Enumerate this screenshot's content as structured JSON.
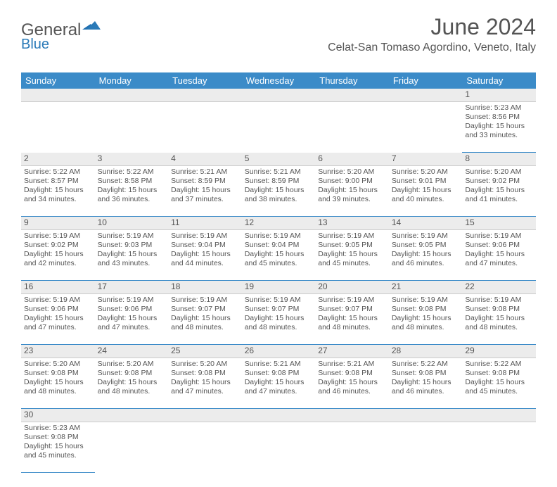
{
  "logo": {
    "part1": "General",
    "part2": "Blue"
  },
  "title": "June 2024",
  "location": "Celat-San Tomaso Agordino, Veneto, Italy",
  "colors": {
    "header_bg": "#3b8bc8",
    "header_text": "#ffffff",
    "text": "#555555",
    "rule": "#3b8bc8",
    "shade": "#ececec"
  },
  "weekdays": [
    "Sunday",
    "Monday",
    "Tuesday",
    "Wednesday",
    "Thursday",
    "Friday",
    "Saturday"
  ],
  "weeks": [
    [
      null,
      null,
      null,
      null,
      null,
      null,
      {
        "n": "1",
        "sr": "5:23 AM",
        "ss": "8:56 PM",
        "dl": "15 hours and 33 minutes."
      }
    ],
    [
      {
        "n": "2",
        "sr": "5:22 AM",
        "ss": "8:57 PM",
        "dl": "15 hours and 34 minutes."
      },
      {
        "n": "3",
        "sr": "5:22 AM",
        "ss": "8:58 PM",
        "dl": "15 hours and 36 minutes."
      },
      {
        "n": "4",
        "sr": "5:21 AM",
        "ss": "8:59 PM",
        "dl": "15 hours and 37 minutes."
      },
      {
        "n": "5",
        "sr": "5:21 AM",
        "ss": "8:59 PM",
        "dl": "15 hours and 38 minutes."
      },
      {
        "n": "6",
        "sr": "5:20 AM",
        "ss": "9:00 PM",
        "dl": "15 hours and 39 minutes."
      },
      {
        "n": "7",
        "sr": "5:20 AM",
        "ss": "9:01 PM",
        "dl": "15 hours and 40 minutes."
      },
      {
        "n": "8",
        "sr": "5:20 AM",
        "ss": "9:02 PM",
        "dl": "15 hours and 41 minutes."
      }
    ],
    [
      {
        "n": "9",
        "sr": "5:19 AM",
        "ss": "9:02 PM",
        "dl": "15 hours and 42 minutes."
      },
      {
        "n": "10",
        "sr": "5:19 AM",
        "ss": "9:03 PM",
        "dl": "15 hours and 43 minutes."
      },
      {
        "n": "11",
        "sr": "5:19 AM",
        "ss": "9:04 PM",
        "dl": "15 hours and 44 minutes."
      },
      {
        "n": "12",
        "sr": "5:19 AM",
        "ss": "9:04 PM",
        "dl": "15 hours and 45 minutes."
      },
      {
        "n": "13",
        "sr": "5:19 AM",
        "ss": "9:05 PM",
        "dl": "15 hours and 45 minutes."
      },
      {
        "n": "14",
        "sr": "5:19 AM",
        "ss": "9:05 PM",
        "dl": "15 hours and 46 minutes."
      },
      {
        "n": "15",
        "sr": "5:19 AM",
        "ss": "9:06 PM",
        "dl": "15 hours and 47 minutes."
      }
    ],
    [
      {
        "n": "16",
        "sr": "5:19 AM",
        "ss": "9:06 PM",
        "dl": "15 hours and 47 minutes."
      },
      {
        "n": "17",
        "sr": "5:19 AM",
        "ss": "9:06 PM",
        "dl": "15 hours and 47 minutes."
      },
      {
        "n": "18",
        "sr": "5:19 AM",
        "ss": "9:07 PM",
        "dl": "15 hours and 48 minutes."
      },
      {
        "n": "19",
        "sr": "5:19 AM",
        "ss": "9:07 PM",
        "dl": "15 hours and 48 minutes."
      },
      {
        "n": "20",
        "sr": "5:19 AM",
        "ss": "9:07 PM",
        "dl": "15 hours and 48 minutes."
      },
      {
        "n": "21",
        "sr": "5:19 AM",
        "ss": "9:08 PM",
        "dl": "15 hours and 48 minutes."
      },
      {
        "n": "22",
        "sr": "5:19 AM",
        "ss": "9:08 PM",
        "dl": "15 hours and 48 minutes."
      }
    ],
    [
      {
        "n": "23",
        "sr": "5:20 AM",
        "ss": "9:08 PM",
        "dl": "15 hours and 48 minutes."
      },
      {
        "n": "24",
        "sr": "5:20 AM",
        "ss": "9:08 PM",
        "dl": "15 hours and 48 minutes."
      },
      {
        "n": "25",
        "sr": "5:20 AM",
        "ss": "9:08 PM",
        "dl": "15 hours and 47 minutes."
      },
      {
        "n": "26",
        "sr": "5:21 AM",
        "ss": "9:08 PM",
        "dl": "15 hours and 47 minutes."
      },
      {
        "n": "27",
        "sr": "5:21 AM",
        "ss": "9:08 PM",
        "dl": "15 hours and 46 minutes."
      },
      {
        "n": "28",
        "sr": "5:22 AM",
        "ss": "9:08 PM",
        "dl": "15 hours and 46 minutes."
      },
      {
        "n": "29",
        "sr": "5:22 AM",
        "ss": "9:08 PM",
        "dl": "15 hours and 45 minutes."
      }
    ],
    [
      {
        "n": "30",
        "sr": "5:23 AM",
        "ss": "9:08 PM",
        "dl": "15 hours and 45 minutes."
      },
      null,
      null,
      null,
      null,
      null,
      null
    ]
  ],
  "labels": {
    "sunrise": "Sunrise:",
    "sunset": "Sunset:",
    "daylight": "Daylight:"
  }
}
